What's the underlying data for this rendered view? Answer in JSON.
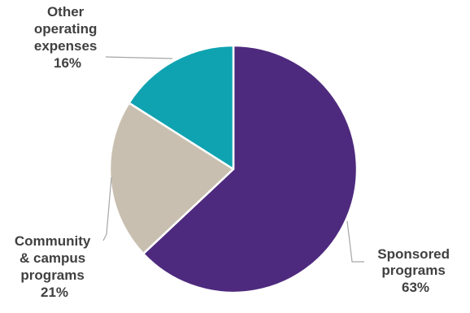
{
  "chart_data": {
    "type": "pie",
    "slices": [
      {
        "label_lines": [
          "Sponsored",
          "programs"
        ],
        "percent_label": "63%",
        "value": 63,
        "color": "#4e2a7e"
      },
      {
        "label_lines": [
          "Community",
          "& campus",
          "programs"
        ],
        "percent_label": "21%",
        "value": 21,
        "color": "#c9bfb0"
      },
      {
        "label_lines": [
          "Other",
          "operating",
          "expenses"
        ],
        "percent_label": "16%",
        "value": 16,
        "color": "#0fa3b1"
      }
    ],
    "start_angle": "12 o'clock",
    "direction": "clockwise",
    "legend": "none"
  }
}
